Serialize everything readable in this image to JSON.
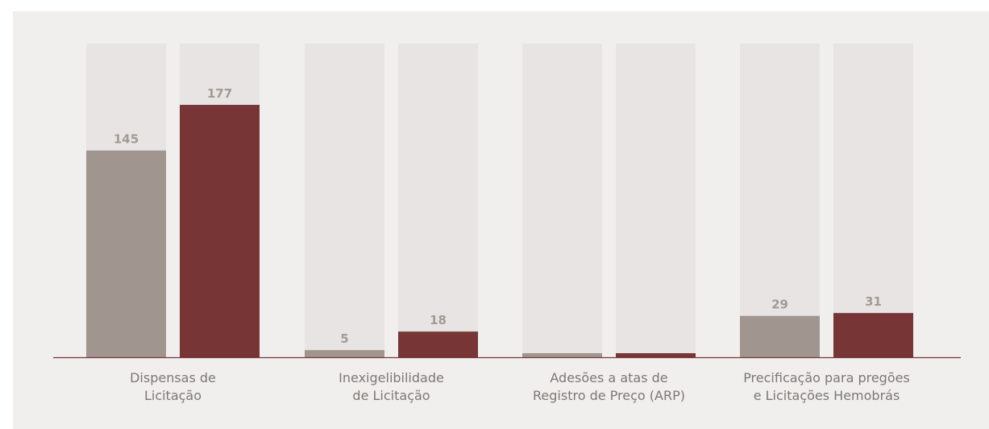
{
  "colors": {
    "panel_bg": "#f1efed",
    "track": "#e8e4e3",
    "series_gray": "#a0958f",
    "series_red": "#773536",
    "axis": "#773536",
    "value_label": "#a29a94",
    "category_label": "#7d7773"
  },
  "chart_data": {
    "type": "bar",
    "title": "",
    "xlabel": "",
    "ylabel": "",
    "ylim": [
      0,
      220
    ],
    "grid": false,
    "legend": "none",
    "categories": [
      [
        "Dispensas de",
        "Licitação"
      ],
      [
        "Inexigelibilidade",
        "de Licitação"
      ],
      [
        "Adesões a atas de",
        "Registro de Preço (ARP)"
      ],
      [
        "Precificação para pregões",
        "e Licitações Hemobrás"
      ]
    ],
    "series": [
      {
        "values": [
          145,
          5,
          1,
          29
        ],
        "labels": [
          "145",
          "5",
          "",
          "29"
        ]
      },
      {
        "values": [
          177,
          18,
          1,
          31
        ],
        "labels": [
          "177",
          "18",
          "",
          "31"
        ]
      }
    ]
  }
}
